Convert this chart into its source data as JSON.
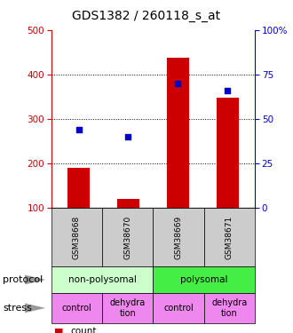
{
  "title": "GDS1382 / 260118_s_at",
  "samples": [
    "GSM38668",
    "GSM38670",
    "GSM38669",
    "GSM38671"
  ],
  "counts": [
    191,
    120,
    437,
    347
  ],
  "percentile_ranks": [
    44,
    40,
    70,
    66
  ],
  "ylim_left": [
    100,
    500
  ],
  "ylim_right": [
    0,
    100
  ],
  "yticks_left": [
    100,
    200,
    300,
    400,
    500
  ],
  "yticks_right": [
    0,
    25,
    50,
    75,
    100
  ],
  "bar_color": "#cc0000",
  "dot_color": "#0000cc",
  "protocol_labels": [
    "non-polysomal",
    "polysomal"
  ],
  "protocol_colors": [
    "#ccffcc",
    "#44ee44"
  ],
  "stress_labels": [
    "control",
    "dehydra\ntion",
    "control",
    "dehydra\ntion"
  ],
  "stress_color": "#ee88ee",
  "sample_bg_color": "#cccccc",
  "left_label_color": "#cc0000",
  "right_label_color": "#0000cc",
  "fig_width": 3.3,
  "fig_height": 3.75,
  "dpi": 100
}
